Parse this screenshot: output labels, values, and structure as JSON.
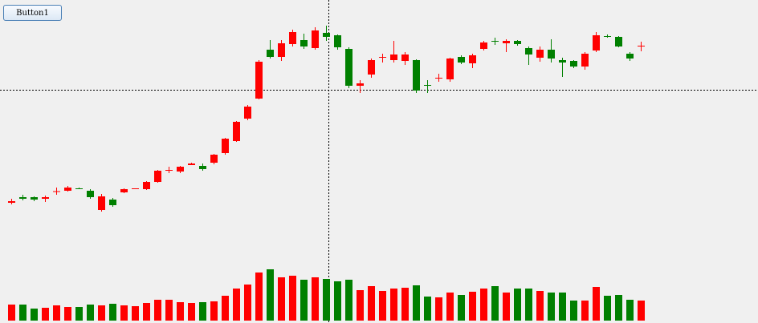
{
  "button": {
    "label": "Button1"
  },
  "chart_data": {
    "type": "candlestick",
    "up_color": "#ff0000",
    "down_color": "#008000",
    "open": [
      150,
      157,
      157,
      155,
      164,
      165,
      168,
      165,
      141,
      154,
      163,
      167,
      167,
      176,
      190,
      189,
      197,
      196,
      200,
      212,
      227,
      255,
      280,
      341,
      332,
      348,
      353,
      343,
      362,
      359,
      342,
      296,
      310,
      331,
      328,
      327,
      328,
      297,
      305,
      304,
      332,
      324,
      342,
      352,
      349,
      352,
      343,
      331,
      341,
      328,
      327,
      320,
      340,
      358,
      357,
      336,
      345
    ],
    "high": [
      155,
      160,
      158,
      159,
      169,
      171,
      169,
      167,
      161,
      156,
      168,
      168,
      177,
      191,
      195,
      196,
      200,
      199,
      211,
      231,
      252,
      272,
      328,
      353,
      353,
      366,
      361,
      369,
      371,
      360,
      344,
      303,
      330,
      336,
      352,
      338,
      329,
      303,
      311,
      331,
      334,
      336,
      352,
      356,
      354,
      353,
      345,
      345,
      354,
      331,
      328,
      338,
      363,
      360,
      358,
      338,
      351
    ],
    "low": [
      148,
      153,
      152,
      151,
      160,
      164,
      167,
      155,
      139,
      145,
      162,
      167,
      166,
      175,
      187,
      187,
      197,
      190,
      198,
      210,
      226,
      253,
      279,
      330,
      327,
      345,
      342,
      341,
      352,
      341,
      293,
      287,
      306,
      325,
      325,
      322,
      287,
      287,
      301,
      301,
      323,
      318,
      340,
      347,
      338,
      346,
      322,
      326,
      325,
      307,
      318,
      316,
      338,
      356,
      344,
      327,
      339
    ],
    "close": [
      152,
      155,
      154,
      157,
      164.5,
      169,
      167,
      157,
      158,
      147,
      167,
      168,
      176,
      190,
      191,
      195,
      199,
      192,
      210,
      230,
      251,
      270,
      326,
      332,
      349,
      363,
      345,
      365,
      357,
      344,
      296,
      299,
      328,
      332,
      335,
      335,
      290,
      296,
      306,
      330,
      325,
      334,
      350,
      351,
      352,
      348,
      335,
      341,
      330,
      325,
      320,
      336,
      359,
      357,
      345,
      330,
      346
    ],
    "volume": [
      20,
      20,
      15,
      16,
      19,
      17,
      17,
      20,
      19,
      21,
      19,
      18,
      22,
      26,
      26,
      23,
      22,
      23,
      24,
      31,
      40,
      45,
      60,
      64,
      54,
      56,
      51,
      54,
      52,
      49,
      51,
      38,
      43,
      37,
      40,
      41,
      44,
      30,
      29,
      35,
      32,
      36,
      40,
      43,
      35,
      40,
      40,
      37,
      35,
      35,
      25,
      25,
      42,
      31,
      32,
      26,
      25
    ]
  }
}
